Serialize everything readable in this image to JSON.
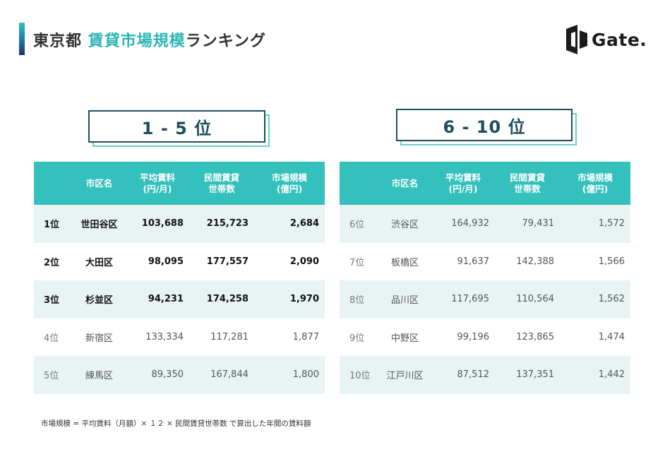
{
  "header": {
    "title_prefix": "東京都",
    "title_accent": "賃貸市場規模",
    "title_suffix": "ランキング"
  },
  "logo": {
    "icon": "gate-logo-icon",
    "text": "Gate."
  },
  "left": {
    "heading": "1 - 5 位",
    "columns": [
      "",
      "市区名",
      "平均賃料",
      "(円/月)",
      "民間賃貸",
      "世帯数",
      "市場規模",
      "(億円)"
    ],
    "rows": [
      {
        "rank": "1位",
        "city": "世田谷区",
        "rent": "103,688",
        "households": "215,723",
        "market": "2,684"
      },
      {
        "rank": "2位",
        "city": "大田区",
        "rent": "98,095",
        "households": "177,557",
        "market": "2,090"
      },
      {
        "rank": "3位",
        "city": "杉並区",
        "rent": "94,231",
        "households": "174,258",
        "market": "1,970"
      },
      {
        "rank": "4位",
        "city": "新宿区",
        "rent": "133,334",
        "households": "117,281",
        "market": "1,877"
      },
      {
        "rank": "5位",
        "city": "練馬区",
        "rent": "89,350",
        "households": "167,844",
        "market": "1,800"
      }
    ]
  },
  "right": {
    "heading": "6 - 10 位",
    "columns": [
      "",
      "市区名",
      "平均賃料",
      "(円/月)",
      "民間賃貸",
      "世帯数",
      "市場規模",
      "(億円)"
    ],
    "rows": [
      {
        "rank": "6位",
        "city": "渋谷区",
        "rent": "164,932",
        "households": "79,431",
        "market": "1,572"
      },
      {
        "rank": "7位",
        "city": "板橋区",
        "rent": "91,637",
        "households": "142,388",
        "market": "1,566"
      },
      {
        "rank": "8位",
        "city": "品川区",
        "rent": "117,695",
        "households": "110,564",
        "market": "1,562"
      },
      {
        "rank": "9位",
        "city": "中野区",
        "rent": "99,196",
        "households": "123,865",
        "market": "1,474"
      },
      {
        "rank": "10位",
        "city": "江戸川区",
        "rent": "87,512",
        "households": "137,351",
        "market": "1,442"
      }
    ]
  },
  "footnote": "市場規模 = 平均賃料（月額）× １２ × 民間賃貸世帯数 で算出した年間の賃料額"
}
